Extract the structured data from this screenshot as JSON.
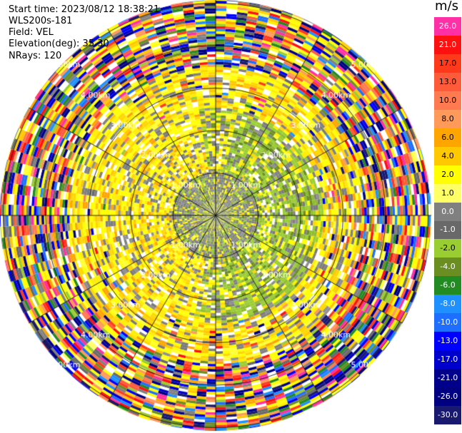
{
  "info": {
    "start_time": "Start time: 2023/08/12 18:38:21",
    "station": "WLS200s-181",
    "field": "Field: VEL",
    "elevation": "Elevation(deg): 35.30",
    "nrays": "NRays: 120"
  },
  "colorbar": {
    "unit": "m/s",
    "labels": [
      "26.0",
      "21.0",
      "17.0",
      "13.0",
      "10.0",
      "8.0",
      "6.0",
      "4.0",
      "2.0",
      "1.0",
      "0.0",
      "-1.0",
      "-2.0",
      "-4.0",
      "-6.0",
      "-8.0",
      "-10.0",
      "-13.0",
      "-17.0",
      "-21.0",
      "-26.0",
      "-30.0"
    ],
    "colors": [
      "#ff2fa6",
      "#ff1010",
      "#ff3a1c",
      "#ff5a3a",
      "#ff7a50",
      "#ff9a5a",
      "#ffa500",
      "#ffc800",
      "#ffff00",
      "#ffff66",
      "#808080",
      "#696969",
      "#9acd32",
      "#6b8e23",
      "#228b22",
      "#1e90ff",
      "#1e6eff",
      "#0000ff",
      "#0000cd",
      "#00008b",
      "#000080",
      "#191970"
    ]
  },
  "chart_data": {
    "type": "ppi",
    "field": "VEL",
    "units": "m/s",
    "elevation_deg": 35.3,
    "n_rays": 120,
    "range_ring_labels": [
      "1.00km",
      "2.00km",
      "3.00km",
      "4.00km",
      "5.00km"
    ],
    "range_rings_km": [
      1,
      2,
      3,
      4,
      5
    ],
    "velocity_scale": [
      26.0,
      21.0,
      17.0,
      13.0,
      10.0,
      8.0,
      6.0,
      4.0,
      2.0,
      1.0,
      0.0,
      -1.0,
      -2.0,
      -4.0,
      -6.0,
      -8.0,
      -10.0,
      -13.0,
      -17.0,
      -21.0,
      -26.0,
      -30.0
    ],
    "zones": [
      {
        "from_km": 0.0,
        "to_km": 1.0,
        "dominant": "gray/green (near zero)"
      },
      {
        "from_km": 1.0,
        "to_km": 2.5,
        "dominant": "yellow west, green east"
      },
      {
        "from_km": 2.5,
        "to_km": 3.5,
        "dominant": "yellow/orange mixed, noisy"
      },
      {
        "from_km": 3.5,
        "to_km": 5.3,
        "dominant": "random multicolor noise"
      }
    ]
  }
}
